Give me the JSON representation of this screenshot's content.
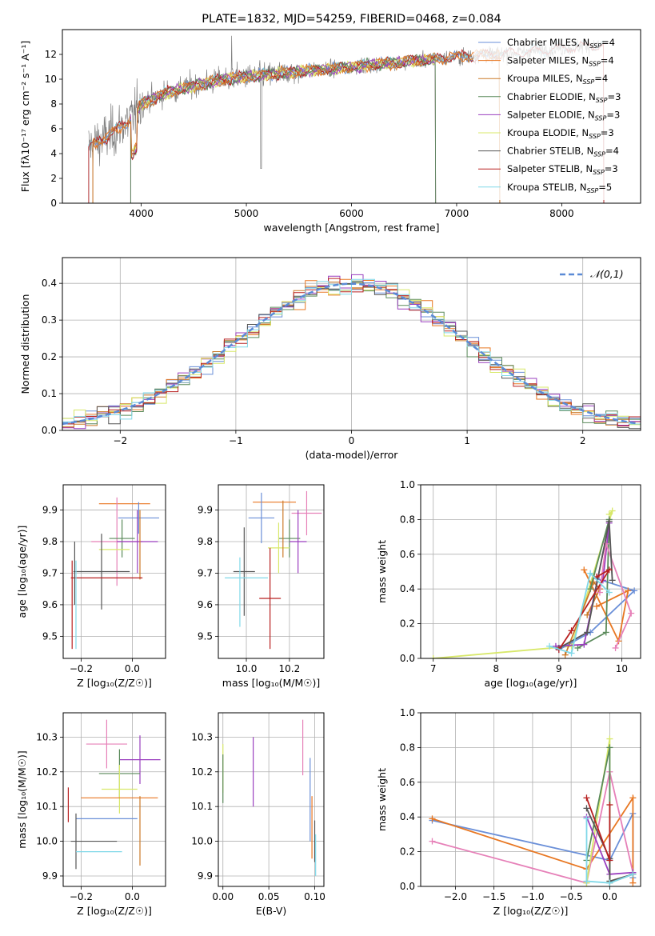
{
  "colors": {
    "chabrier_miles": "#6a8fd8",
    "salpeter_miles": "#e87722",
    "kroupa_miles": "#cc7a29",
    "chabrier_elodie": "#5a8a5a",
    "salpeter_elodie": "#9a3fbf",
    "kroupa_elodie": "#d8e86a",
    "chabrier_stelib": "#555555",
    "salpeter_stelib": "#b82020",
    "kroupa_stelib": "#80d8e8",
    "pink": "#e680b8",
    "data": "#808080"
  },
  "chart_data": [
    {
      "id": "spectrum",
      "type": "line",
      "title": "PLATE=1832, MJD=54259, FIBERID=0468, z=0.084",
      "xlabel": "wavelength [Angstrom, rest frame]",
      "ylabel": "Flux [fλ10⁻¹⁷ erg cm⁻² s⁻¹ A⁻¹]",
      "xlim": [
        3250,
        8750
      ],
      "ylim": [
        0,
        14
      ],
      "xticks": [
        4000,
        5000,
        6000,
        7000,
        8000
      ],
      "yticks": [
        0,
        2,
        4,
        6,
        8,
        10,
        12
      ],
      "grid": false,
      "legend_position": "right",
      "legend": [
        "Chabrier MILES, NSSP=4",
        "Salpeter MILES, NSSP=4",
        "Kroupa MILES, NSSP=4",
        "Chabrier ELODIE, NSSP=3",
        "Salpeter ELODIE, NSSP=3",
        "Kroupa ELODIE, NSSP=3",
        "Chabrier STELIB, NSSP=4",
        "Salpeter STELIB, NSSP=3",
        "Kroupa STELIB, NSSP=5"
      ],
      "continuum": {
        "x": [
          3500,
          3700,
          3900,
          4000,
          4200,
          4500,
          4800,
          5000,
          5500,
          6000,
          6500,
          7000,
          7500,
          8000,
          8400
        ],
        "y": [
          4.5,
          5.5,
          6.8,
          8.0,
          8.8,
          9.5,
          10.0,
          10.2,
          10.6,
          11.0,
          11.4,
          11.8,
          12.1,
          12.5,
          12.8
        ]
      }
    },
    {
      "id": "residuals",
      "type": "histogram",
      "xlabel": "(data-model)/error",
      "ylabel": "Normed distribution",
      "xlim": [
        -2.5,
        2.5
      ],
      "ylim": [
        0,
        0.47
      ],
      "xticks": [
        -2,
        -1,
        0,
        1,
        2
      ],
      "yticks": [
        0.0,
        0.1,
        0.2,
        0.3,
        0.4
      ],
      "grid": true,
      "bin_width": 0.1,
      "legend": [
        "𝒩(0,1)"
      ],
      "legend_position": "top-right"
    },
    {
      "id": "age_vs_Z",
      "type": "errorbar",
      "xlabel": "Z [log₁₀(Z/Z☉)]",
      "ylabel": "age  [log₁₀(age/yr)]",
      "xlim": [
        -0.27,
        0.13
      ],
      "ylim": [
        9.43,
        9.98
      ],
      "xticks": [
        -0.2,
        0.0
      ],
      "yticks": [
        9.5,
        9.6,
        9.7,
        9.8,
        9.9
      ],
      "grid": true,
      "points": [
        {
          "x": -0.03,
          "y": 9.92,
          "xerr": 0.1,
          "yerr": 0.0,
          "c": "salpeter_miles"
        },
        {
          "x": 0.025,
          "y": 9.875,
          "xerr": 0.08,
          "yerr": 0.05,
          "c": "chabrier_miles"
        },
        {
          "x": -0.06,
          "y": 9.8,
          "xerr": 0.1,
          "yerr": 0.14,
          "c": "pink"
        },
        {
          "x": -0.04,
          "y": 9.81,
          "xerr": 0.05,
          "yerr": 0.06,
          "c": "chabrier_elodie"
        },
        {
          "x": 0.02,
          "y": 9.8,
          "xerr": 0.08,
          "yerr": 0.1,
          "c": "salpeter_elodie"
        },
        {
          "x": -0.07,
          "y": 9.775,
          "xerr": 0.06,
          "yerr": 0.0,
          "c": "kroupa_elodie"
        },
        {
          "x": 0.03,
          "y": 9.79,
          "xerr": 0.0,
          "yerr": 0.11,
          "c": "kroupa_miles"
        },
        {
          "x": -0.12,
          "y": 9.705,
          "xerr": 0.11,
          "yerr": 0.12,
          "c": "chabrier_stelib"
        },
        {
          "x": -0.1,
          "y": 9.685,
          "xerr": 0.14,
          "yerr": 0.0,
          "c": "salpeter_stelib"
        },
        {
          "x": -0.22,
          "y": 9.6,
          "xerr": 0.0,
          "yerr": 0.14,
          "c": "kroupa_stelib"
        },
        {
          "x": -0.235,
          "y": 9.6,
          "xerr": 0.0,
          "yerr": 0.14,
          "c": "salpeter_stelib"
        },
        {
          "x": -0.225,
          "y": 9.7,
          "xerr": 0.0,
          "yerr": 0.1,
          "c": "chabrier_stelib"
        }
      ]
    },
    {
      "id": "age_vs_mass",
      "type": "errorbar",
      "xlabel": "mass [log₁₀(M/M☉)]",
      "ylabel": "",
      "xlim": [
        9.87,
        10.36
      ],
      "ylim": [
        9.43,
        9.98
      ],
      "xticks": [
        10.0,
        10.2
      ],
      "yticks": [
        9.5,
        9.6,
        9.7,
        9.8,
        9.9
      ],
      "grid": true,
      "points": [
        {
          "x": 10.13,
          "y": 9.925,
          "xerr": 0.1,
          "yerr": 0.0,
          "c": "salpeter_miles"
        },
        {
          "x": 10.07,
          "y": 9.875,
          "xerr": 0.06,
          "yerr": 0.08,
          "c": "chabrier_miles"
        },
        {
          "x": 10.28,
          "y": 9.89,
          "xerr": 0.07,
          "yerr": 0.07,
          "c": "pink"
        },
        {
          "x": 10.2,
          "y": 9.81,
          "xerr": 0.05,
          "yerr": 0.06,
          "c": "chabrier_elodie"
        },
        {
          "x": 10.24,
          "y": 9.8,
          "xerr": 0.04,
          "yerr": 0.1,
          "c": "salpeter_elodie"
        },
        {
          "x": 10.15,
          "y": 9.78,
          "xerr": 0.05,
          "yerr": 0.08,
          "c": "kroupa_elodie"
        },
        {
          "x": 10.17,
          "y": 9.84,
          "xerr": 0.0,
          "yerr": 0.09,
          "c": "kroupa_miles"
        },
        {
          "x": 9.99,
          "y": 9.705,
          "xerr": 0.05,
          "yerr": 0.14,
          "c": "chabrier_stelib"
        },
        {
          "x": 10.0,
          "y": 9.685,
          "xerr": 0.1,
          "yerr": 0.0,
          "c": "kroupa_stelib"
        },
        {
          "x": 10.11,
          "y": 9.62,
          "xerr": 0.05,
          "yerr": 0.16,
          "c": "salpeter_stelib"
        },
        {
          "x": 9.97,
          "y": 9.64,
          "xerr": 0.0,
          "yerr": 0.11,
          "c": "kroupa_stelib"
        }
      ]
    },
    {
      "id": "massweight_vs_age",
      "type": "line",
      "xlabel": "age  [log₁₀(age/yr)]",
      "ylabel": "mass weight",
      "xlim": [
        6.8,
        10.3
      ],
      "ylim": [
        0.0,
        1.0
      ],
      "xticks": [
        7,
        8,
        9,
        10
      ],
      "yticks": [
        0.0,
        0.2,
        0.4,
        0.6,
        0.8,
        1.0
      ],
      "grid": true,
      "series": [
        {
          "c": "kroupa_elodie",
          "x": [
            7.0,
            9.2,
            9.85,
            9.8
          ],
          "y": [
            0.0,
            0.07,
            0.85,
            0.83
          ]
        },
        {
          "c": "chabrier_miles",
          "x": [
            9.0,
            9.5,
            10.2,
            9.6
          ],
          "y": [
            0.05,
            0.15,
            0.39,
            0.46
          ]
        },
        {
          "c": "salpeter_miles",
          "x": [
            9.4,
            9.95,
            10.1,
            9.6
          ],
          "y": [
            0.51,
            0.1,
            0.39,
            0.3
          ]
        },
        {
          "c": "kroupa_miles",
          "x": [
            9.1,
            9.55,
            9.65,
            9.45
          ],
          "y": [
            0.02,
            0.44,
            0.4,
            0.25
          ]
        },
        {
          "c": "chabrier_elodie",
          "x": [
            9.3,
            9.75,
            9.8,
            9.5
          ],
          "y": [
            0.06,
            0.15,
            0.8,
            0.4
          ]
        },
        {
          "c": "salpeter_elodie",
          "x": [
            8.95,
            9.4,
            9.8,
            9.7
          ],
          "y": [
            0.07,
            0.08,
            0.78,
            0.45
          ]
        },
        {
          "c": "pink",
          "x": [
            9.9,
            10.15,
            9.75,
            9.65
          ],
          "y": [
            0.06,
            0.26,
            0.66,
            0.38
          ]
        },
        {
          "c": "chabrier_stelib",
          "x": [
            9.0,
            9.45,
            9.8,
            9.85
          ],
          "y": [
            0.06,
            0.15,
            0.79,
            0.45
          ]
        },
        {
          "c": "salpeter_stelib",
          "x": [
            9.0,
            9.2,
            9.8,
            9.6
          ],
          "y": [
            0.05,
            0.16,
            0.51,
            0.47
          ]
        },
        {
          "c": "kroupa_stelib",
          "x": [
            8.85,
            9.2,
            9.5,
            9.8
          ],
          "y": [
            0.07,
            0.03,
            0.49,
            0.38
          ]
        }
      ]
    },
    {
      "id": "mass_vs_Z",
      "type": "errorbar",
      "xlabel": "Z [log₁₀(Z/Z☉)]",
      "ylabel": "mass [log₁₀(M/M☉)]",
      "xlim": [
        -0.27,
        0.13
      ],
      "ylim": [
        9.87,
        10.37
      ],
      "xticks": [
        -0.2,
        0.0
      ],
      "yticks": [
        9.9,
        10.0,
        10.1,
        10.2,
        10.3
      ],
      "grid": true,
      "points": [
        {
          "x": -0.1,
          "y": 10.28,
          "xerr": 0.08,
          "yerr": 0.07,
          "c": "pink"
        },
        {
          "x": 0.03,
          "y": 10.235,
          "xerr": 0.08,
          "yerr": 0.07,
          "c": "salpeter_elodie"
        },
        {
          "x": -0.05,
          "y": 10.195,
          "xerr": 0.08,
          "yerr": 0.07,
          "c": "chabrier_elodie"
        },
        {
          "x": -0.05,
          "y": 10.15,
          "xerr": 0.07,
          "yerr": 0.07,
          "c": "kroupa_elodie"
        },
        {
          "x": -0.05,
          "y": 10.125,
          "xerr": 0.15,
          "yerr": 0.0,
          "c": "salpeter_miles"
        },
        {
          "x": -0.25,
          "y": 10.105,
          "xerr": 0.0,
          "yerr": 0.05,
          "c": "salpeter_stelib"
        },
        {
          "x": -0.1,
          "y": 10.065,
          "xerr": 0.12,
          "yerr": 0.0,
          "c": "chabrier_miles"
        },
        {
          "x": -0.15,
          "y": 10.0,
          "xerr": 0.09,
          "yerr": 0.0,
          "c": "chabrier_stelib"
        },
        {
          "x": -0.22,
          "y": 10.0,
          "xerr": 0.0,
          "yerr": 0.08,
          "c": "chabrier_stelib"
        },
        {
          "x": -0.13,
          "y": 9.97,
          "xerr": 0.09,
          "yerr": 0.0,
          "c": "kroupa_stelib"
        },
        {
          "x": 0.03,
          "y": 10.03,
          "xerr": 0.0,
          "yerr": 0.1,
          "c": "kroupa_miles"
        }
      ]
    },
    {
      "id": "mass_vs_ebv",
      "type": "errorbar",
      "xlabel": "E(B-V)",
      "ylabel": "",
      "xlim": [
        -0.005,
        0.11
      ],
      "ylim": [
        9.87,
        10.37
      ],
      "xticks": [
        0.0,
        0.05,
        0.1
      ],
      "yticks": [
        9.9,
        10.0,
        10.1,
        10.2,
        10.3
      ],
      "grid": true,
      "points": [
        {
          "x": 0.0,
          "y": 10.21,
          "xerr": 0.0,
          "yerr": 0.07,
          "c": "kroupa_elodie"
        },
        {
          "x": 0.0,
          "y": 10.18,
          "xerr": 0.0,
          "yerr": 0.07,
          "c": "chabrier_elodie"
        },
        {
          "x": 0.033,
          "y": 10.2,
          "xerr": 0.0,
          "yerr": 0.1,
          "c": "salpeter_elodie"
        },
        {
          "x": 0.087,
          "y": 10.27,
          "xerr": 0.0,
          "yerr": 0.08,
          "c": "pink"
        },
        {
          "x": 0.095,
          "y": 10.12,
          "xerr": 0.0,
          "yerr": 0.12,
          "c": "chabrier_miles"
        },
        {
          "x": 0.097,
          "y": 10.04,
          "xerr": 0.0,
          "yerr": 0.09,
          "c": "salpeter_miles"
        },
        {
          "x": 0.1,
          "y": 10.0,
          "xerr": 0.0,
          "yerr": 0.06,
          "c": "chabrier_stelib"
        },
        {
          "x": 0.101,
          "y": 9.96,
          "xerr": 0.0,
          "yerr": 0.06,
          "c": "kroupa_stelib"
        }
      ]
    },
    {
      "id": "massweight_vs_Z",
      "type": "line",
      "xlabel": "Z [log₁₀(Z/Z☉)]",
      "ylabel": "mass weight",
      "xlim": [
        -2.45,
        0.4
      ],
      "ylim": [
        0.0,
        1.0
      ],
      "xticks": [
        -2.0,
        -1.5,
        -1.0,
        -0.5,
        0.0
      ],
      "yticks": [
        0.0,
        0.2,
        0.4,
        0.6,
        0.8,
        1.0
      ],
      "grid": true,
      "series": [
        {
          "c": "chabrier_miles",
          "x": [
            -2.3,
            0.0,
            0.3,
            0.3
          ],
          "y": [
            0.38,
            0.15,
            0.42,
            0.05
          ]
        },
        {
          "c": "salpeter_miles",
          "x": [
            -2.3,
            -0.3,
            0.3,
            0.3
          ],
          "y": [
            0.39,
            0.1,
            0.51,
            0.02
          ]
        },
        {
          "c": "pink",
          "x": [
            -2.3,
            -0.3,
            0.0,
            0.3
          ],
          "y": [
            0.26,
            0.02,
            0.66,
            0.08
          ]
        },
        {
          "c": "kroupa_elodie",
          "x": [
            -0.3,
            0.0,
            0.0,
            0.3
          ],
          "y": [
            0.02,
            0.85,
            0.03,
            0.07
          ]
        },
        {
          "c": "chabrier_elodie",
          "x": [
            -0.3,
            0.0,
            0.0,
            0.3
          ],
          "y": [
            0.15,
            0.8,
            0.02,
            0.07
          ]
        },
        {
          "c": "salpeter_elodie",
          "x": [
            -0.3,
            0.0,
            0.3,
            0.3
          ],
          "y": [
            0.4,
            0.07,
            0.08,
            0.08
          ]
        },
        {
          "c": "chabrier_stelib",
          "x": [
            -0.3,
            0.0,
            0.0,
            0.3
          ],
          "y": [
            0.45,
            0.16,
            0.03,
            0.07
          ]
        },
        {
          "c": "salpeter_stelib",
          "x": [
            -0.3,
            0.0,
            0.0
          ],
          "y": [
            0.51,
            0.15,
            0.47
          ]
        },
        {
          "c": "kroupa_stelib",
          "x": [
            -0.3,
            -0.3,
            0.0,
            0.3
          ],
          "y": [
            0.39,
            0.03,
            0.02,
            0.07
          ]
        }
      ]
    }
  ]
}
